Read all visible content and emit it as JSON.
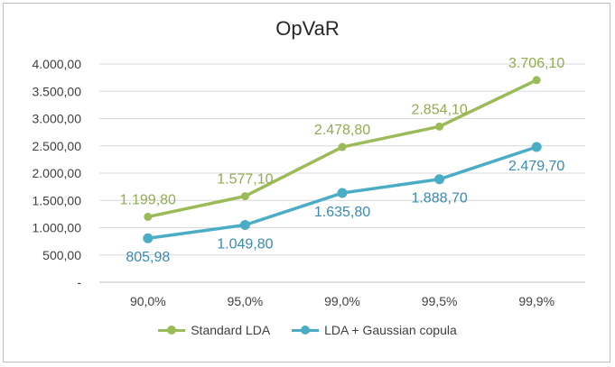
{
  "chart_data": {
    "type": "line",
    "title": "OpVaR",
    "xlabel": "",
    "ylabel": "",
    "categories": [
      "90,0%",
      "95,0%",
      "99,0%",
      "99,5%",
      "99,9%"
    ],
    "ylim": [
      0,
      4000
    ],
    "yticks": [
      0,
      500,
      1000,
      1500,
      2000,
      2500,
      3000,
      3500,
      4000
    ],
    "ytick_labels": [
      "-",
      "500,00",
      "1.000,00",
      "1.500,00",
      "2.000,00",
      "2.500,00",
      "3.000,00",
      "3.500,00",
      "4.000,00"
    ],
    "grid": true,
    "legend_position": "bottom",
    "series": [
      {
        "name": "Standard LDA",
        "color": "#9bbb59",
        "values": [
          1199.8,
          1577.1,
          2478.8,
          2854.1,
          3706.1
        ],
        "labels": [
          "1.199,80",
          "1.577,10",
          "2.478,80",
          "2.854,10",
          "3.706,10"
        ],
        "label_position": "above"
      },
      {
        "name": "LDA + Gaussian copula",
        "color": "#4bacc6",
        "values": [
          805.98,
          1049.8,
          1635.8,
          1888.7,
          2479.7
        ],
        "labels": [
          "805,98",
          "1.049,80",
          "1.635,80",
          "1.888,70",
          "2.479,70"
        ],
        "label_position": "below"
      }
    ]
  }
}
